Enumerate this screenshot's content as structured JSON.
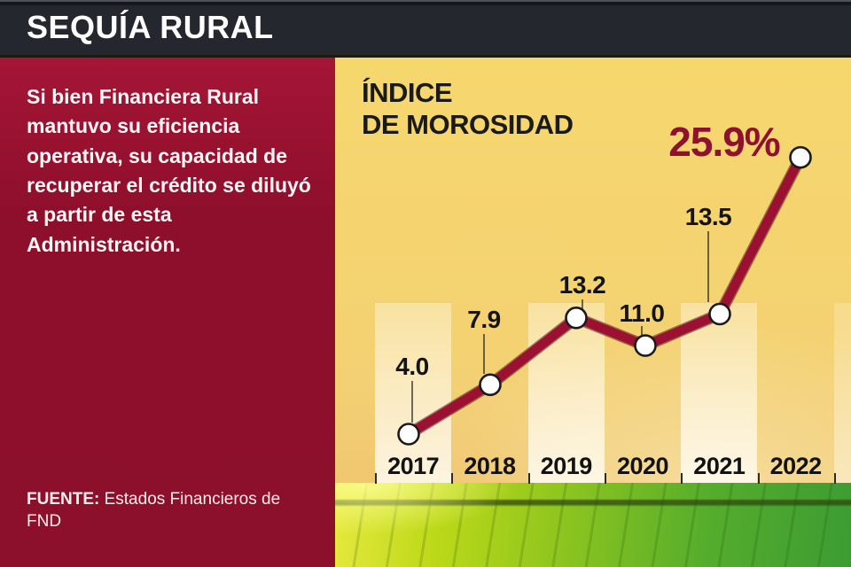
{
  "header": {
    "title": "SEQUÍA RURAL"
  },
  "panel": {
    "description": "Si bien Financiera Rural mantuvo su eficiencia operativa, su capacidad de recuperar el crédito se diluyó a partir de esta Administración.",
    "source_label": "FUENTE:",
    "source_text": " Estados Financieros de FND"
  },
  "chart_data": {
    "type": "line",
    "title": "ÍNDICE DE MOROSIDAD",
    "title_lines": [
      "ÍNDICE",
      "DE MOROSIDAD"
    ],
    "categories": [
      "2017",
      "2018",
      "2019",
      "2020",
      "2021",
      "2022"
    ],
    "values": [
      4.0,
      7.9,
      13.2,
      11.0,
      13.5,
      25.9
    ],
    "point_labels": [
      "4.0",
      "7.9",
      "13.2",
      "11.0",
      "13.5",
      "25.9%"
    ],
    "unit": "%",
    "ylim": [
      0,
      34
    ],
    "grid": false,
    "legend": "none",
    "line_color": "#9c1031",
    "line_outline_color": "#3d0614",
    "marker_fill": "#ffffff",
    "marker_stroke": "#1b1b1b",
    "label_color": "#141414",
    "highlight_label_color": "#8e1130",
    "striped_background_columns": [
      "2017",
      "2019",
      "2021"
    ]
  },
  "colors": {
    "banner_bg": "#24272e",
    "panel_bg": "#96102e",
    "chart_bg": "#f5d56e",
    "accent_red": "#9c1031"
  }
}
